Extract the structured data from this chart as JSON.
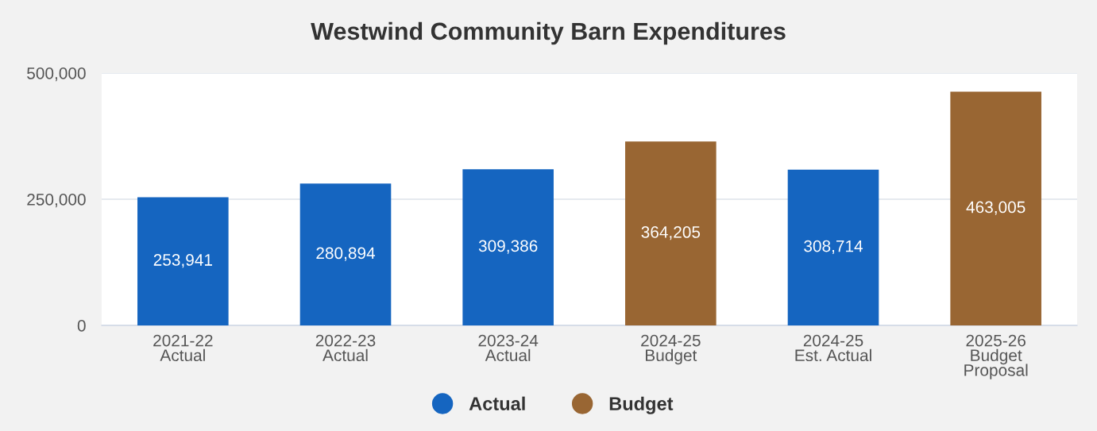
{
  "chart_data": {
    "type": "bar",
    "title": "Westwind Community Barn Expenditures",
    "categories": [
      "2021-22\nActual",
      "2022-23\nActual",
      "2023-24\nActual",
      "2024-25\nBudget",
      "2024-25\nEst. Actual",
      "2025-26\nBudget\nProposal"
    ],
    "stacked": true,
    "series": [
      {
        "name": "Actual",
        "color": "#1565c0",
        "values": [
          253941,
          280894,
          309386,
          null,
          308714,
          null
        ],
        "value_labels": [
          "253,941",
          "280,894",
          "309,386",
          null,
          "308,714",
          null
        ]
      },
      {
        "name": "Budget",
        "color": "#996633",
        "values": [
          null,
          null,
          null,
          364205,
          null,
          463005
        ],
        "value_labels": [
          null,
          null,
          null,
          "364,205",
          null,
          "463,005"
        ]
      }
    ],
    "ylim": [
      0,
      500000
    ],
    "yticks": [
      0,
      {
        "value": 250000,
        "label": "250,000"
      },
      {
        "value": 500000,
        "label": "500,000"
      }
    ],
    "grid": "y",
    "legend": "bottom"
  }
}
